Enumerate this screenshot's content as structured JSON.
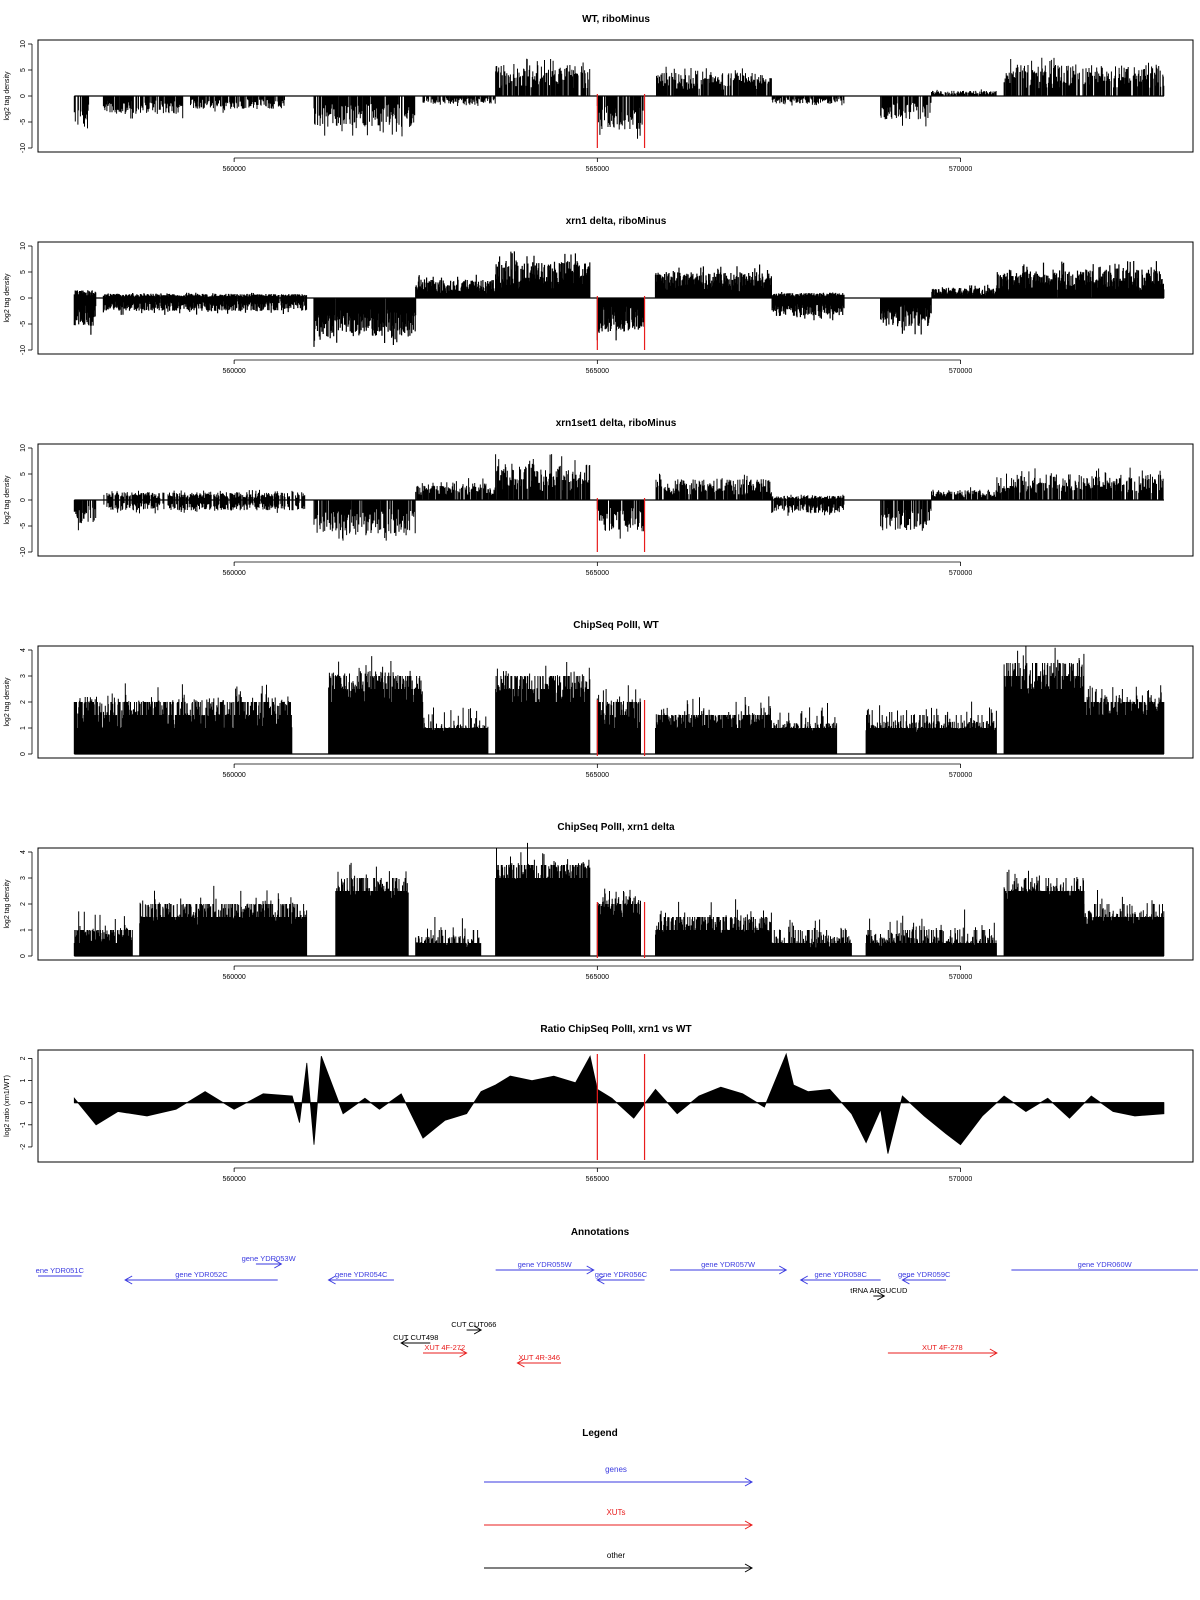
{
  "chart_data": [
    {
      "type": "bar",
      "title": "WT, riboMinus",
      "ylabel": "log2 tag density",
      "ylim": [
        -10,
        10
      ],
      "yticks": [
        -10,
        -5,
        0,
        5,
        10
      ],
      "xlim": [
        557300,
        573200
      ],
      "xticks": [
        560000,
        565000,
        570000
      ],
      "markers": [
        565000,
        565650
      ],
      "style": "sparse",
      "segments": [
        [
          557800,
          558000,
          -6.5,
          0.5
        ],
        [
          558200,
          559300,
          -3.5,
          0.3
        ],
        [
          559400,
          560000,
          -2.5,
          0.2
        ],
        [
          560000,
          560700,
          -2.5,
          0.2
        ],
        [
          561100,
          562500,
          -6,
          0.2
        ],
        [
          562600,
          563600,
          -1.5,
          0.5
        ],
        [
          563600,
          564900,
          0.5,
          6
        ],
        [
          565000,
          565650,
          -6.5,
          0
        ],
        [
          565800,
          567400,
          0.5,
          4.5
        ],
        [
          567400,
          568400,
          -1.5,
          0.5
        ],
        [
          568900,
          569600,
          -4.5,
          0.5
        ],
        [
          569600,
          570500,
          0.2,
          1
        ],
        [
          570600,
          572800,
          0.5,
          6
        ]
      ]
    },
    {
      "type": "bar",
      "title": "xrn1 delta, riboMinus",
      "ylabel": "log2 tag density",
      "ylim": [
        -10,
        10
      ],
      "yticks": [
        -10,
        -5,
        0,
        5,
        10
      ],
      "xlim": [
        557300,
        573200
      ],
      "xticks": [
        560000,
        565000,
        570000
      ],
      "markers": [
        565000,
        565650
      ],
      "style": "dense",
      "segments": [
        [
          557800,
          558100,
          -5.5,
          1.5
        ],
        [
          558200,
          561000,
          -2.5,
          0.8
        ],
        [
          561100,
          562500,
          -7.5,
          0
        ],
        [
          562500,
          563600,
          0.5,
          3.5
        ],
        [
          563600,
          564900,
          1,
          7
        ],
        [
          565000,
          565650,
          -6.5,
          0
        ],
        [
          565800,
          567400,
          1,
          5
        ],
        [
          567400,
          568400,
          -3.5,
          1
        ],
        [
          568900,
          569600,
          -5.5,
          0.5
        ],
        [
          569600,
          570500,
          0.5,
          2
        ],
        [
          570500,
          572800,
          1,
          5.5
        ]
      ]
    },
    {
      "type": "bar",
      "title": "xrn1set1 delta, riboMinus",
      "ylabel": "log2 tag density",
      "ylim": [
        -10,
        10
      ],
      "yticks": [
        -10,
        -5,
        0,
        5,
        10
      ],
      "xlim": [
        557300,
        573200
      ],
      "xticks": [
        560000,
        565000,
        570000
      ],
      "markers": [
        565000,
        565650
      ],
      "style": "sparse",
      "segments": [
        [
          557800,
          558100,
          -4.5,
          0.5
        ],
        [
          558200,
          561000,
          -2,
          1.5
        ],
        [
          561100,
          562500,
          -6.5,
          0.3
        ],
        [
          562500,
          563600,
          0.5,
          3.5
        ],
        [
          563600,
          564900,
          1,
          7
        ],
        [
          565000,
          565650,
          -6,
          0.5
        ],
        [
          565800,
          567400,
          0.5,
          4
        ],
        [
          567400,
          568400,
          -2.5,
          0.8
        ],
        [
          568900,
          569600,
          -6,
          0.5
        ],
        [
          569600,
          570500,
          0.5,
          2
        ],
        [
          570500,
          572800,
          1,
          5
        ]
      ]
    },
    {
      "type": "bar",
      "title": "ChipSeq PolII, WT",
      "ylabel": "log2 tag density",
      "ylim": [
        0,
        4
      ],
      "yticks": [
        0,
        1,
        2,
        3,
        4
      ],
      "xlim": [
        557300,
        573200
      ],
      "xticks": [
        560000,
        565000,
        570000
      ],
      "markers": [
        565000,
        565650
      ],
      "style": "stepped",
      "segments": [
        [
          557800,
          560800,
          1,
          2.2
        ],
        [
          561300,
          562600,
          2,
          3.2
        ],
        [
          562600,
          563500,
          0.8,
          1.2
        ],
        [
          563600,
          564900,
          1.8,
          3.2
        ],
        [
          565000,
          565600,
          1,
          2.3
        ],
        [
          565800,
          567400,
          1,
          1.6
        ],
        [
          567400,
          568300,
          0.8,
          1.2
        ],
        [
          568700,
          570500,
          0.8,
          1.3
        ],
        [
          570600,
          571700,
          2.3,
          3.5
        ],
        [
          571700,
          572800,
          1.5,
          2.3
        ]
      ]
    },
    {
      "type": "bar",
      "title": "ChipSeq PolII, xrn1 delta",
      "ylabel": "log2 tag density",
      "ylim": [
        0,
        4
      ],
      "yticks": [
        0,
        1,
        2,
        3,
        4
      ],
      "xlim": [
        557300,
        573200
      ],
      "xticks": [
        560000,
        565000,
        570000
      ],
      "markers": [
        565000,
        565650
      ],
      "style": "stepped",
      "segments": [
        [
          557800,
          558600,
          0.5,
          1
        ],
        [
          558700,
          561000,
          1.2,
          2
        ],
        [
          561400,
          562400,
          2.2,
          3
        ],
        [
          562500,
          563400,
          0.3,
          0.8
        ],
        [
          563600,
          564900,
          2.8,
          3.6
        ],
        [
          565000,
          565600,
          1.5,
          2.3
        ],
        [
          565800,
          567400,
          0.8,
          1.5
        ],
        [
          567400,
          568500,
          0.3,
          0.8
        ],
        [
          568700,
          570500,
          0.3,
          0.9
        ],
        [
          570600,
          571700,
          2.2,
          2.8
        ],
        [
          571700,
          572800,
          1.2,
          1.8
        ]
      ]
    },
    {
      "type": "area",
      "title": "Ratio ChipSeq PolII, xrn1 vs WT",
      "ylabel": "log2 ratio (xrn1/WT)",
      "ylim": [
        -2.5,
        2.2
      ],
      "yticks": [
        -2,
        -1,
        0,
        1,
        2
      ],
      "xlim": [
        557300,
        573200
      ],
      "xticks": [
        560000,
        565000,
        570000
      ],
      "markers": [
        565000,
        565650
      ],
      "x": [
        557800,
        558100,
        558400,
        558800,
        559200,
        559600,
        560000,
        560400,
        560800,
        560900,
        561000,
        561100,
        561200,
        561500,
        561800,
        562000,
        562300,
        562600,
        562900,
        563200,
        563400,
        563600,
        563800,
        564100,
        564400,
        564700,
        564900,
        565000,
        565200,
        565500,
        565800,
        566100,
        566400,
        566700,
        567000,
        567300,
        567600,
        567700,
        567900,
        568200,
        568500,
        568700,
        568900,
        569000,
        569200,
        569500,
        569800,
        570000,
        570300,
        570600,
        570900,
        571200,
        571500,
        571800,
        572100,
        572400,
        572800
      ],
      "values": [
        0.2,
        -1.0,
        -0.4,
        -0.6,
        -0.3,
        0.5,
        -0.3,
        0.4,
        0.3,
        -0.9,
        1.8,
        -1.9,
        2.1,
        -0.5,
        0.2,
        -0.3,
        0.4,
        -1.6,
        -0.8,
        -0.5,
        0.5,
        0.8,
        1.2,
        1.0,
        1.2,
        0.9,
        2.1,
        0.6,
        0.2,
        -0.7,
        0.6,
        -0.5,
        0.3,
        0.7,
        0.4,
        -0.2,
        2.2,
        0.8,
        0.5,
        0.6,
        -0.5,
        -1.8,
        -0.3,
        -2.3,
        0.3,
        -0.6,
        -1.4,
        -1.9,
        -0.6,
        0.3,
        -0.4,
        0.2,
        -0.7,
        0.3,
        -0.4,
        -0.6,
        -0.5
      ]
    }
  ],
  "annotations": {
    "title": "Annotations",
    "genes": [
      {
        "label": "ene YDR051C",
        "from": 557100,
        "to": 557900,
        "dir": "none"
      },
      {
        "label": "gene YDR052C",
        "from": 558500,
        "to": 560600,
        "dir": "left"
      },
      {
        "label": "gene YDR053W",
        "from": 560300,
        "to": 560650,
        "dir": "right"
      },
      {
        "label": "gene YDR054C",
        "from": 561300,
        "to": 562200,
        "dir": "left"
      },
      {
        "label": "gene YDR055W",
        "from": 563600,
        "to": 564950,
        "dir": "right"
      },
      {
        "label": "gene YDR056C",
        "from": 565000,
        "to": 565650,
        "dir": "left"
      },
      {
        "label": "gene YDR057W",
        "from": 566000,
        "to": 567600,
        "dir": "right"
      },
      {
        "label": "gene YDR058C",
        "from": 567800,
        "to": 568900,
        "dir": "left"
      },
      {
        "label": "gene YDR059C",
        "from": 569200,
        "to": 569800,
        "dir": "left"
      },
      {
        "label": "gene YDR060W",
        "from": 570700,
        "to": 573300,
        "dir": "none"
      }
    ],
    "xuts": [
      {
        "label": "XUT 4F-272",
        "from": 562600,
        "to": 563200,
        "dir": "right"
      },
      {
        "label": "XUT 4R-346",
        "from": 563900,
        "to": 564500,
        "dir": "left"
      },
      {
        "label": "XUT 4F-278",
        "from": 569000,
        "to": 570500,
        "dir": "right"
      }
    ],
    "other": [
      {
        "label": "CUT CUT498",
        "from": 562300,
        "to": 562700,
        "dir": "left"
      },
      {
        "label": "CUT CUT066",
        "from": 563200,
        "to": 563400,
        "dir": "right"
      },
      {
        "label": "tRNA ARGUCUD",
        "from": 568800,
        "to": 568950,
        "dir": "right"
      }
    ]
  },
  "legend": {
    "title": "Legend",
    "items": [
      {
        "label": "genes",
        "color": "#3a3ae0"
      },
      {
        "label": "XUTs",
        "color": "#e81c1c"
      },
      {
        "label": "other",
        "color": "#000000"
      }
    ]
  },
  "colors": {
    "gene": "#3a3ae0",
    "xut": "#e81c1c",
    "other": "#000000",
    "marker": "#e81c1c"
  }
}
